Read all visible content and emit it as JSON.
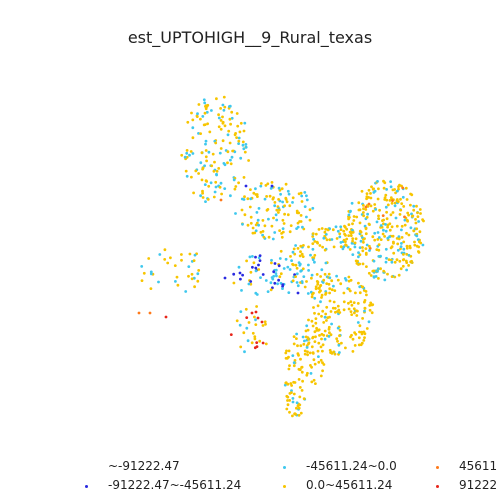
{
  "title": "est_UPTOHIGH__9_Rural_texas",
  "legend": {
    "items": [
      {
        "label": "~-91222.47",
        "color": "#ffffff"
      },
      {
        "label": "-91222.47~-45611.24",
        "color": "#2a2ae0"
      },
      {
        "label": "-45611.24~0.0",
        "color": "#3fc8ee"
      },
      {
        "label": "0.0~45611.24",
        "color": "#f7c500"
      },
      {
        "label": "45611",
        "color": "#ff7a1a"
      },
      {
        "label": "91222",
        "color": "#e8261b"
      }
    ]
  },
  "chart_data": {
    "type": "scatter",
    "title": "est_UPTOHIGH__9_Rural_texas",
    "classes": [
      "~-91222.47",
      "-91222.47~-45611.24",
      "-45611.24~0.0",
      "0.0~45611.24",
      "45611",
      "91222"
    ],
    "colors": [
      "#ffffff",
      "#2a2ae0",
      "#3fc8ee",
      "#f7c500",
      "#ff7a1a",
      "#e8261b"
    ]
  }
}
